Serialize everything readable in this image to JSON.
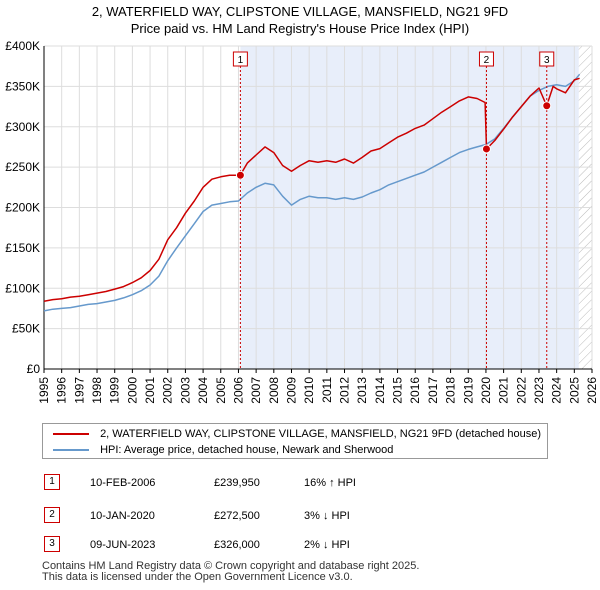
{
  "chart_data": {
    "type": "line",
    "title": "2, WATERFIELD WAY, CLIPSTONE VILLAGE, MANSFIELD, NG21 9FD",
    "subtitle": "Price paid vs. HM Land Registry's House Price Index (HPI)",
    "xlabel": "",
    "ylabel": "",
    "xlim": [
      1995,
      2026
    ],
    "ylim": [
      0,
      400000
    ],
    "x_ticks": [
      "1995",
      "1996",
      "1997",
      "1998",
      "1999",
      "2000",
      "2001",
      "2002",
      "2003",
      "2004",
      "2005",
      "2006",
      "2007",
      "2008",
      "2009",
      "2010",
      "2011",
      "2012",
      "2013",
      "2014",
      "2015",
      "2016",
      "2017",
      "2018",
      "2019",
      "2020",
      "2021",
      "2022",
      "2023",
      "2024",
      "2025",
      "2026"
    ],
    "y_ticks": [
      "£0",
      "£50K",
      "£100K",
      "£150K",
      "£200K",
      "£250K",
      "£300K",
      "£350K",
      "£400K"
    ],
    "y_tick_values": [
      0,
      50000,
      100000,
      150000,
      200000,
      250000,
      300000,
      350000,
      400000
    ],
    "grid": true,
    "series": [
      {
        "name": "2, WATERFIELD WAY, CLIPSTONE VILLAGE, MANSFIELD, NG21 9FD (detached house)",
        "color": "#cc0000",
        "x": [
          1995.0,
          1995.5,
          1996.0,
          1996.5,
          1997.0,
          1997.5,
          1998.0,
          1998.5,
          1999.0,
          1999.5,
          2000.0,
          2000.5,
          2001.0,
          2001.5,
          2002.0,
          2002.5,
          2003.0,
          2003.5,
          2004.0,
          2004.5,
          2005.0,
          2005.5,
          2006.1,
          2006.5,
          2007.0,
          2007.5,
          2008.0,
          2008.5,
          2009.0,
          2009.5,
          2010.0,
          2010.5,
          2011.0,
          2011.5,
          2012.0,
          2012.5,
          2013.0,
          2013.5,
          2014.0,
          2014.5,
          2015.0,
          2015.5,
          2016.0,
          2016.5,
          2017.0,
          2017.5,
          2018.0,
          2018.5,
          2019.0,
          2019.5,
          2019.95,
          2020.03,
          2020.5,
          2021.0,
          2021.5,
          2022.0,
          2022.5,
          2023.0,
          2023.44,
          2023.8,
          2024.0,
          2024.5,
          2025.0,
          2025.3
        ],
        "values": [
          84000,
          86000,
          87000,
          89000,
          90000,
          92000,
          94000,
          96000,
          99000,
          102000,
          107000,
          113000,
          122000,
          136000,
          160000,
          175000,
          193000,
          208000,
          225000,
          235000,
          238000,
          240000,
          239950,
          255000,
          265000,
          275000,
          268000,
          252000,
          245000,
          252000,
          258000,
          256000,
          258000,
          256000,
          260000,
          255000,
          262000,
          270000,
          273000,
          280000,
          287000,
          292000,
          298000,
          302000,
          310000,
          318000,
          325000,
          332000,
          337000,
          335000,
          330000,
          272500,
          283000,
          297000,
          312000,
          325000,
          338000,
          348000,
          326000,
          350000,
          347000,
          342000,
          358000,
          360000
        ]
      },
      {
        "name": "HPI: Average price, detached house, Newark and Sherwood",
        "color": "#6699cc",
        "x": [
          1995.0,
          1995.5,
          1996.0,
          1996.5,
          1997.0,
          1997.5,
          1998.0,
          1998.5,
          1999.0,
          1999.5,
          2000.0,
          2000.5,
          2001.0,
          2001.5,
          2002.0,
          2002.5,
          2003.0,
          2003.5,
          2004.0,
          2004.5,
          2005.0,
          2005.5,
          2006.0,
          2006.5,
          2007.0,
          2007.5,
          2008.0,
          2008.5,
          2009.0,
          2009.5,
          2010.0,
          2010.5,
          2011.0,
          2011.5,
          2012.0,
          2012.5,
          2013.0,
          2013.5,
          2014.0,
          2014.5,
          2015.0,
          2015.5,
          2016.0,
          2016.5,
          2017.0,
          2017.5,
          2018.0,
          2018.5,
          2019.0,
          2019.5,
          2020.0,
          2020.5,
          2021.0,
          2021.5,
          2022.0,
          2022.5,
          2023.0,
          2023.5,
          2024.0,
          2024.5,
          2025.0,
          2025.3
        ],
        "values": [
          72000,
          74000,
          75000,
          76000,
          78000,
          80000,
          81000,
          83000,
          85000,
          88000,
          92000,
          97000,
          104000,
          115000,
          134000,
          150000,
          165000,
          180000,
          195000,
          203000,
          205000,
          207000,
          208000,
          218000,
          225000,
          230000,
          228000,
          214000,
          203000,
          210000,
          214000,
          212000,
          212000,
          210000,
          212000,
          210000,
          213000,
          218000,
          222000,
          228000,
          232000,
          236000,
          240000,
          244000,
          250000,
          256000,
          262000,
          268000,
          272000,
          275000,
          278000,
          285000,
          298000,
          312000,
          325000,
          338000,
          345000,
          350000,
          352000,
          350000,
          357000,
          365000
        ]
      }
    ],
    "annotations": [
      {
        "label": "1",
        "x": 2006.11
      },
      {
        "label": "2",
        "x": 2020.03
      },
      {
        "label": "3",
        "x": 2023.44
      }
    ],
    "sale_points": [
      {
        "label": "1",
        "x": 2006.11,
        "value": 239950
      },
      {
        "label": "2",
        "x": 2020.03,
        "value": 272500
      },
      {
        "label": "3",
        "x": 2023.44,
        "value": 326000
      }
    ],
    "shaded_range": [
      2006.11,
      2025.25
    ],
    "hatched_range": [
      2025.25,
      2026
    ]
  },
  "sales": [
    {
      "num": "1",
      "date": "10-FEB-2006",
      "price": "£239,950",
      "hpi": "16% ↑ HPI"
    },
    {
      "num": "2",
      "date": "10-JAN-2020",
      "price": "£272,500",
      "hpi": "3% ↓ HPI"
    },
    {
      "num": "3",
      "date": "09-JUN-2023",
      "price": "£326,000",
      "hpi": "2% ↓ HPI"
    }
  ],
  "footer": {
    "line1": "Contains HM Land Registry data © Crown copyright and database right 2025.",
    "line2": "This data is licensed under the Open Government Licence v3.0."
  }
}
